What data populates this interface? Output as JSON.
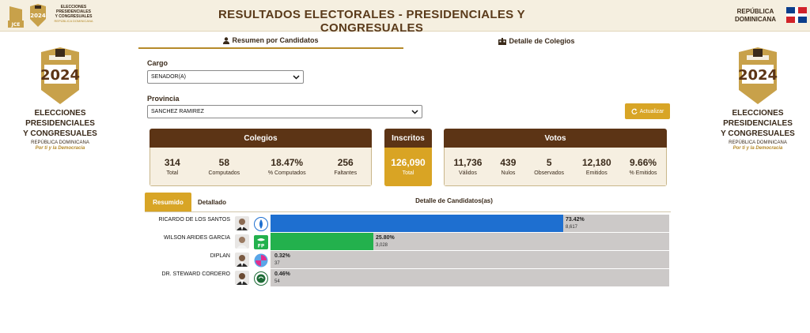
{
  "header": {
    "title": "RESULTADOS ELECTORALES - PRESIDENCIALES Y CONGRESUALES",
    "jce": "JCE",
    "mini_year": "2024",
    "mini_text_1": "ELECCIONES",
    "mini_text_2": "PRESIDENCIALES",
    "mini_text_3": "Y CONGRESUALES",
    "mini_text_4": "REPÚBLICA DOMINICANA",
    "country_line1": "REPÚBLICA",
    "country_line2": "DOMINICANA"
  },
  "side_logo": {
    "year": "2024",
    "line1": "ELECCIONES",
    "line2": "PRESIDENCIALES",
    "line3": "Y CONGRESUALES",
    "country": "REPÚBLICA DOMINICANA",
    "slogan": "Por ti y la Democracia"
  },
  "nav": {
    "tab1": "Resumen por Candidatos",
    "tab2": "Detalle de Colegios"
  },
  "filters": {
    "cargo_label": "Cargo",
    "cargo_value": "SENADOR(A)",
    "provincia_label": "Provincia",
    "provincia_value": "SANCHEZ RAMIREZ",
    "refresh_label": "Actualizar"
  },
  "colegios": {
    "title": "Colegios",
    "stats": [
      {
        "value": "314",
        "caption": "Total"
      },
      {
        "value": "58",
        "caption": "Computados"
      },
      {
        "value": "18.47%",
        "caption": "% Computados"
      },
      {
        "value": "256",
        "caption": "Faltantes"
      }
    ]
  },
  "inscritos": {
    "title": "Inscritos",
    "value": "126,090",
    "caption": "Total"
  },
  "votos": {
    "title": "Votos",
    "stats": [
      {
        "value": "11,736",
        "caption": "Válidos"
      },
      {
        "value": "439",
        "caption": "Nulos"
      },
      {
        "value": "5",
        "caption": "Observados"
      },
      {
        "value": "12,180",
        "caption": "Emitidos"
      },
      {
        "value": "9.66%",
        "caption": "% Emitidos"
      }
    ]
  },
  "results": {
    "tab_resumido": "Resumido",
    "tab_detallado": "Detallado",
    "detail_title": "Detalle de Candidatos(as)",
    "candidates": [
      {
        "name": "RICARDO DE LOS SANTOS",
        "percent": "73.42%",
        "share": 0.7342,
        "votes": "8,617",
        "party_icon": "prm-party-icon",
        "bar_color": "#1e6fd0"
      },
      {
        "name": "WILSON ARIDES GARCIA",
        "percent": "25.80%",
        "share": 0.258,
        "votes": "3,028",
        "party_icon": "fp-party-icon",
        "party_abbr": "FP",
        "bar_color": "#23b14d"
      },
      {
        "name": "DIPLAN",
        "percent": "0.32%",
        "share": 0.0032,
        "votes": "37",
        "party_icon": "diplan-party-icon",
        "bar_color": "#cfcac8"
      },
      {
        "name": "DR. STEWARD CORDERO",
        "percent": "0.46%",
        "share": 0.0046,
        "votes": "54",
        "party_icon": "green-party-icon",
        "bar_color": "#cfcac8"
      }
    ]
  },
  "colors": {
    "brown": "#5c3415",
    "gold": "#d8a526",
    "blue": "#1e6fd0",
    "green": "#23b14d"
  }
}
